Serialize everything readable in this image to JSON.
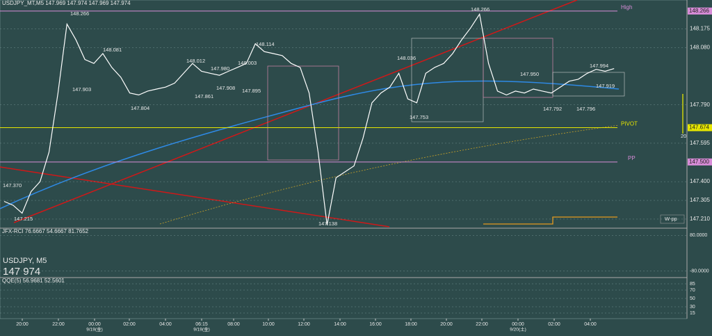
{
  "header": "USDJPY_MT,M5  147.969 147.974 147.969 147.974",
  "chart_data": {
    "type": "line",
    "symbol": "USDJPY, M5",
    "last_price": "147 974",
    "series": [
      {
        "name": "USDJPY",
        "color": "#ffffff",
        "values": [
          147.3,
          147.28,
          147.24,
          147.35,
          147.4,
          147.55,
          147.85,
          148.2,
          148.12,
          148.02,
          148.0,
          148.05,
          147.98,
          147.93,
          147.85,
          147.84,
          147.86,
          147.87,
          147.88,
          147.9,
          147.95,
          148.0,
          147.96,
          147.95,
          147.94,
          147.96,
          147.98,
          148.0,
          148.1,
          148.06,
          148.05,
          148.04,
          148.0,
          147.98,
          147.85,
          147.55,
          147.18,
          147.42,
          147.45,
          147.48,
          147.62,
          147.8,
          147.85,
          147.88,
          147.95,
          147.82,
          147.8,
          147.95,
          147.98,
          148.0,
          148.05,
          148.12,
          148.18,
          148.25,
          148.0,
          147.86,
          147.84,
          147.86,
          147.85,
          147.87,
          147.86,
          147.85,
          147.88,
          147.91,
          147.92,
          147.95,
          147.97,
          147.96,
          147.974
        ]
      }
    ],
    "ylim": [
      147.171,
      148.322
    ],
    "yticks": [
      {
        "value": 148.175,
        "label": "148.175"
      },
      {
        "value": 148.08,
        "label": "148.080"
      },
      {
        "value": 147.79,
        "label": "147.790"
      },
      {
        "value": 147.595,
        "label": "147.595"
      },
      {
        "value": 147.4,
        "label": "147.400"
      },
      {
        "value": 147.305,
        "label": "147.305"
      },
      {
        "value": 147.21,
        "label": "147.210"
      }
    ],
    "levels": [
      {
        "name": "High",
        "value": 148.266,
        "label": "148.266",
        "color": "#d88cd8"
      },
      {
        "name": "PIVOT",
        "value": 147.674,
        "label": "147.674",
        "color": "#e6e600"
      },
      {
        "name": "PP",
        "value": 147.5,
        "label": "147.500",
        "color": "#d88cd8"
      }
    ],
    "annotations": [
      "148.266",
      "148.081",
      "147.903",
      "147.804",
      "148.012",
      "147.980",
      "147.908",
      "147.861",
      "148.003",
      "147.895",
      "148.114",
      "147.138",
      "148.036",
      "147.753",
      "148.266",
      "147.950",
      "147.792",
      "147.796",
      "147.994",
      "147.919",
      "147.370",
      "147.215",
      "W-pp",
      "20"
    ],
    "xticks": [
      "20:00",
      "22:00",
      "00:00",
      "02:00",
      "04:00",
      "06:15",
      "08:00",
      "10:00",
      "12:00",
      "14:00",
      "16:00",
      "18:00",
      "20:00",
      "22:00",
      "00:00",
      "02:00",
      "04:00"
    ],
    "date_labels": [
      "9/19(金)",
      "9/19(金)",
      "9/20(土)"
    ],
    "rci": {
      "title": "JFX-RCI 76.6667 54.6667 81.7652",
      "yticks": [
        {
          "value": 80,
          "label": "80.0000"
        },
        {
          "value": -80,
          "label": "-80.0000"
        }
      ],
      "ylim": [
        -100,
        100
      ]
    },
    "qqe": {
      "title": "QQE(5) 56.9681 52.5601",
      "yticks": [
        85,
        70,
        50,
        30,
        15
      ],
      "ylim": [
        5,
        95
      ]
    }
  }
}
